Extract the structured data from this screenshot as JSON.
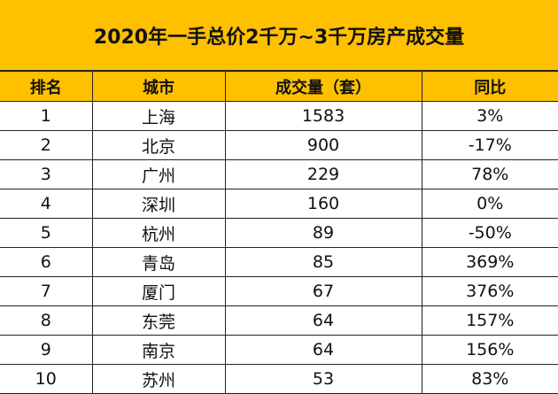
{
  "title": "2020年一手总价2千万~3千万房产成交量",
  "headers": [
    "排名",
    "城市",
    "成交量（套）",
    "同比"
  ],
  "rows": [
    [
      "1",
      "上海",
      "1583",
      "3%"
    ],
    [
      "2",
      "北京",
      "900",
      "-17%"
    ],
    [
      "3",
      "广州",
      "229",
      "78%"
    ],
    [
      "4",
      "深圳",
      "160",
      "0%"
    ],
    [
      "5",
      "杭州",
      "89",
      "-50%"
    ],
    [
      "6",
      "青岛",
      "85",
      "369%"
    ],
    [
      "7",
      "厦门",
      "67",
      "376%"
    ],
    [
      "8",
      "东莞",
      "64",
      "157%"
    ],
    [
      "9",
      "南京",
      "64",
      "156%"
    ],
    [
      "10",
      "苏州",
      "53",
      "83%"
    ]
  ],
  "colors": {
    "header_bg": "#ffc000"
  }
}
